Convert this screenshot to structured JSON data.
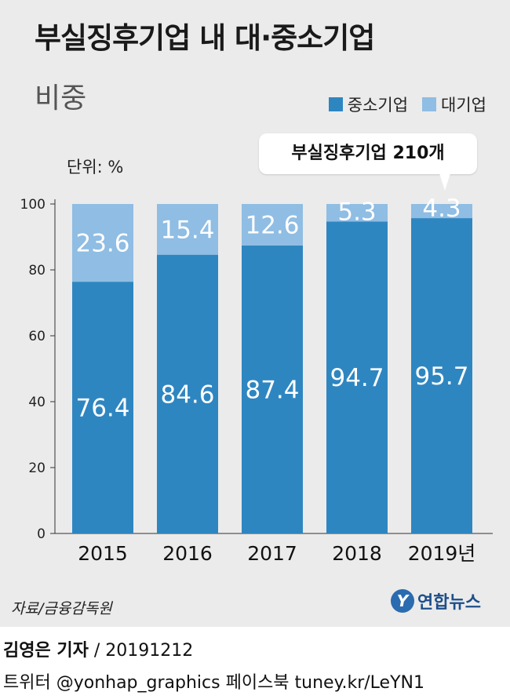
{
  "header": {
    "title": "부실징후기업 내 대·중소기업",
    "subtitle": "비중",
    "unit_label": "단위: %",
    "callout": "부실징후기업 210개"
  },
  "legend": [
    {
      "label": "중소기업",
      "color": "#2e86c1"
    },
    {
      "label": "대기업",
      "color": "#8fbde3"
    }
  ],
  "chart_data": {
    "type": "bar",
    "stacked": true,
    "categories": [
      "2015",
      "2016",
      "2017",
      "2018",
      "2019년"
    ],
    "series": [
      {
        "name": "중소기업",
        "values": [
          76.4,
          84.6,
          87.4,
          94.7,
          95.7
        ],
        "color": "#2e86c1"
      },
      {
        "name": "대기업",
        "values": [
          23.6,
          15.4,
          12.6,
          5.3,
          4.3
        ],
        "color": "#8fbde3"
      }
    ],
    "value_labels": {
      "중소기업": [
        "76.4",
        "84.6",
        "87.4",
        "94.7",
        "95.7"
      ],
      "대기업": [
        "23.6",
        "15.4",
        "12.6",
        "5.3",
        "4.3"
      ]
    },
    "yticks": [
      "0",
      "20",
      "40",
      "60",
      "80",
      "100"
    ],
    "ylim": [
      0,
      100
    ],
    "title": "부실징후기업 내 대·중소기업 비중",
    "xlabel": "",
    "ylabel": "단위: %"
  },
  "source": "자료/금융감독원",
  "logo": {
    "mark": "Y",
    "text": "연합뉴스"
  },
  "footer": {
    "reporter_name": "김영은 기자",
    "reporter_date": " / 20191212",
    "social": "트위터 @yonhap_graphics  페이스북 tuney.kr/LeYN1"
  }
}
